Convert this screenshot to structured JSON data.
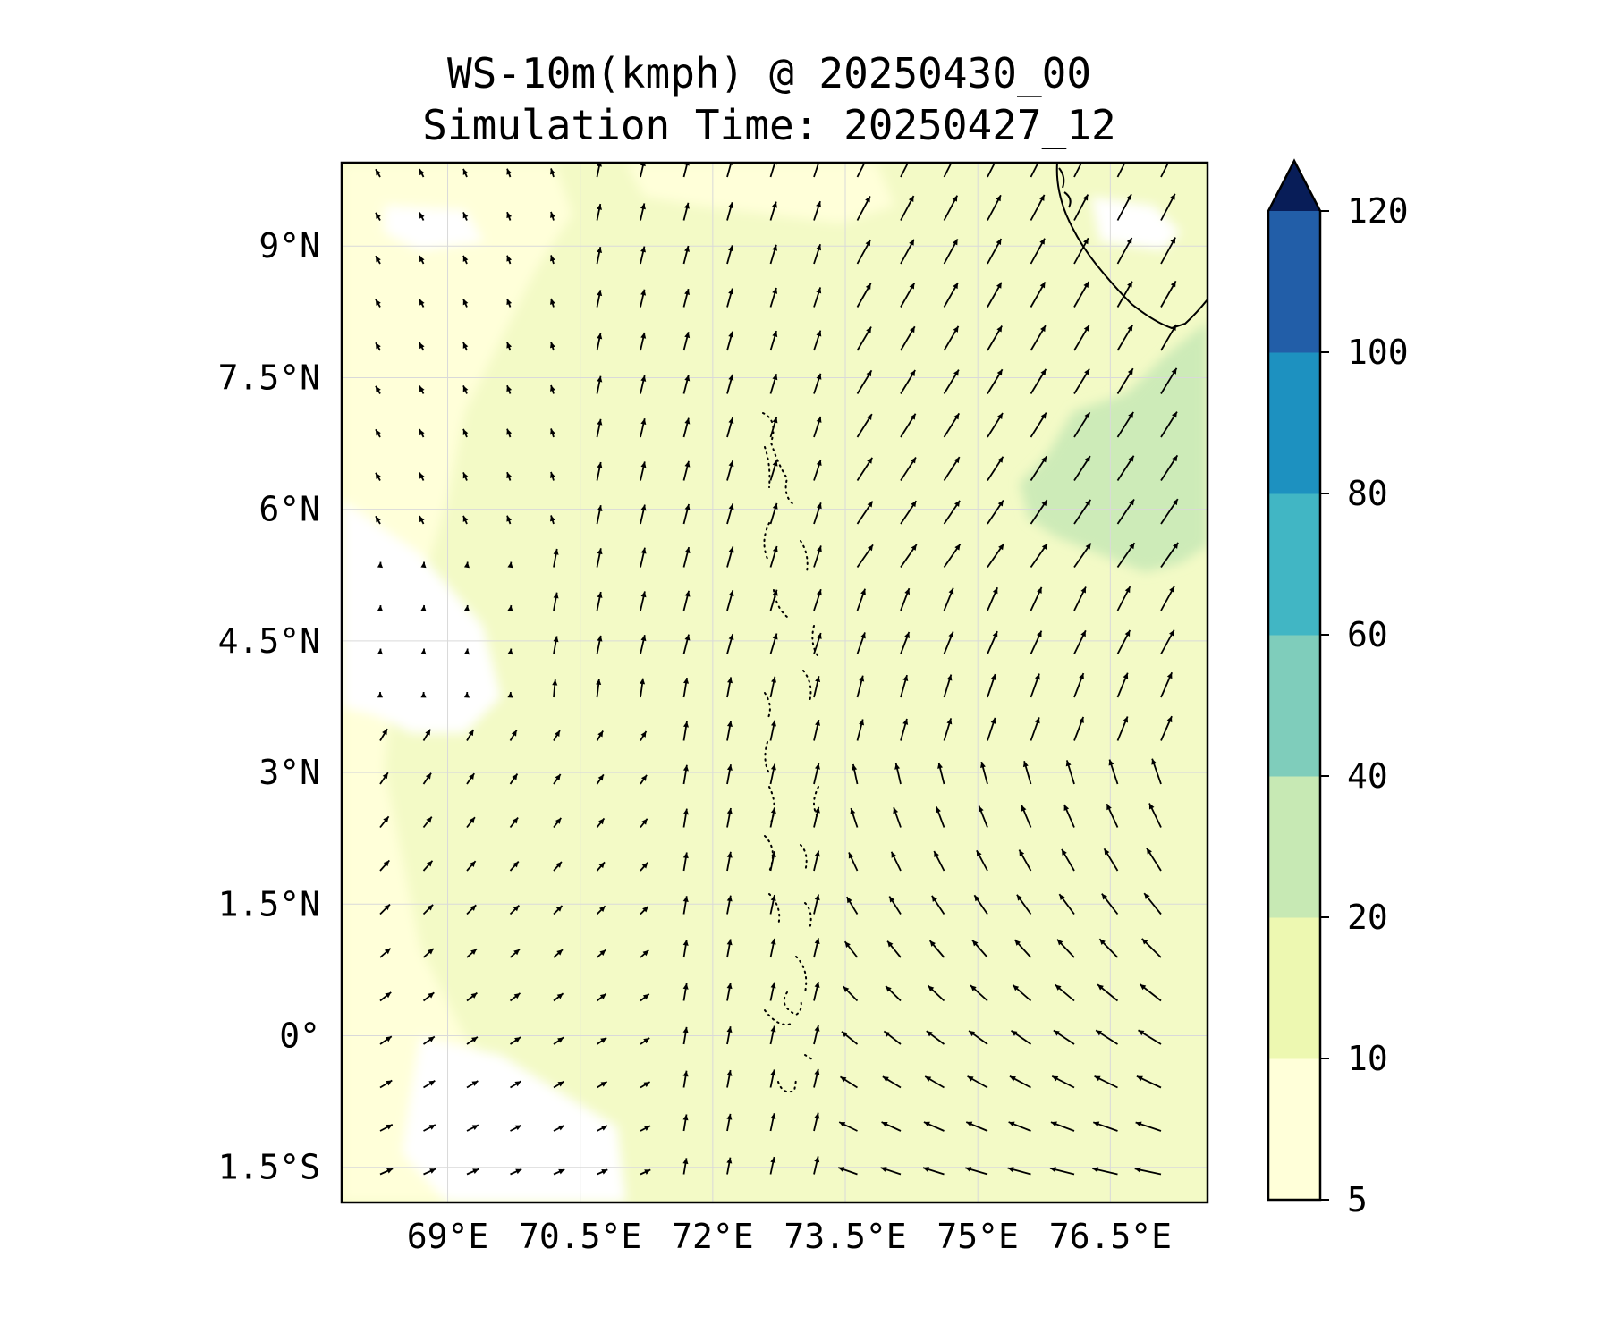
{
  "title": {
    "line1": "WS-10m(kmph) @ 20250430_00",
    "line2": "Simulation Time: 20250427_12"
  },
  "map": {
    "lon_range": [
      67.8,
      77.6
    ],
    "lat_range": [
      -1.9,
      9.95
    ],
    "lat_ticks": [
      {
        "value": 9,
        "label": "9°N"
      },
      {
        "value": 7.5,
        "label": "7.5°N"
      },
      {
        "value": 6,
        "label": "6°N"
      },
      {
        "value": 4.5,
        "label": "4.5°N"
      },
      {
        "value": 3,
        "label": "3°N"
      },
      {
        "value": 1.5,
        "label": "1.5°N"
      },
      {
        "value": 0,
        "label": "0°"
      },
      {
        "value": -1.5,
        "label": "1.5°S"
      }
    ],
    "lon_ticks": [
      {
        "value": 69,
        "label": "69°E"
      },
      {
        "value": 70.5,
        "label": "70.5°E"
      },
      {
        "value": 72,
        "label": "72°E"
      },
      {
        "value": 73.5,
        "label": "73.5°E"
      },
      {
        "value": 75,
        "label": "75°E"
      },
      {
        "value": 76.5,
        "label": "76.5°E"
      }
    ],
    "gridlines": true,
    "field": "10 m wind speed (kmph), mostly 5–20 with a 20–40 patch west of Sri Lanka",
    "vectors": "black wind arrows, northward over central ocean, westerly in south-west, turning north-westward in the south-east"
  },
  "colorbar": {
    "extend": "max",
    "levels": [
      5,
      10,
      20,
      40,
      60,
      80,
      100,
      120
    ],
    "tick_labels": [
      "5",
      "10",
      "20",
      "40",
      "60",
      "80",
      "100",
      "120"
    ],
    "colors": [
      "#ffffd9",
      "#edf8b1",
      "#c7e9b4",
      "#7fcdbb",
      "#41b6c4",
      "#1d91c0",
      "#225ea8",
      "#0c2c84"
    ],
    "extend_color": "#081d58"
  }
}
